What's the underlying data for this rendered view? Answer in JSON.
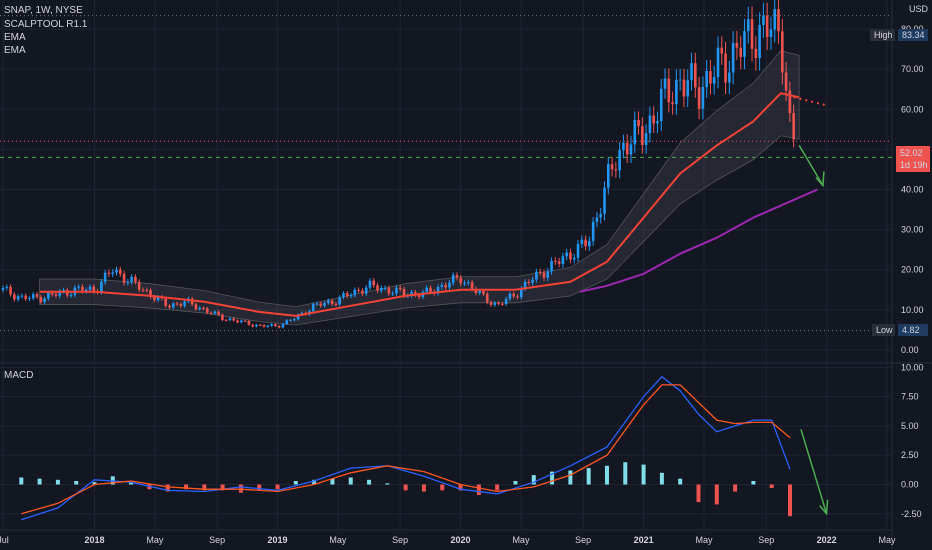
{
  "header": {
    "title": "SNAP, 1W, NYSE",
    "indicator1": "SCALPTOOL R1.1",
    "indicator2": "EMA",
    "indicator3": "EMA",
    "currency": "USD",
    "macd_label": "MACD"
  },
  "colors": {
    "background": "#131722",
    "grid": "#1f2433",
    "up": "#2196f3",
    "down": "#ef5350",
    "ema_fast": "#f44336",
    "ema_slow": "#9c27b0",
    "macd_line": "#2962ff",
    "signal_line": "#ff5722",
    "arrow": "#4caf50"
  },
  "price_labels": {
    "high_label": "High",
    "high_value": "83.34",
    "low_label": "Low",
    "low_value": "4.82",
    "last_value": "52.02",
    "countdown": "1d 19h"
  },
  "chart_data": [
    {
      "type": "candlestick",
      "title": "SNAP, 1W, NYSE",
      "ylim": [
        -3,
        86
      ],
      "y_ticks": [
        "0.00",
        "10.00",
        "20.00",
        "30.00",
        "40.00",
        "50.00",
        "60.00",
        "70.00",
        "80.00"
      ],
      "x_ticks": [
        "Jul",
        "2018",
        "May",
        "Sep",
        "2019",
        "May",
        "Sep",
        "2020",
        "May",
        "Sep",
        "2021",
        "May",
        "Sep",
        "2022",
        "May"
      ],
      "x_tick_dates": [
        2017.5,
        2018.0,
        2018.33,
        2018.67,
        2019.0,
        2019.33,
        2019.67,
        2020.0,
        2020.33,
        2020.67,
        2021.0,
        2021.33,
        2021.67,
        2022.0,
        2022.33
      ],
      "close": {
        "x": [
          2017.5,
          2017.6,
          2017.7,
          2017.8,
          2017.9,
          2018.0,
          2018.1,
          2018.2,
          2018.3,
          2018.4,
          2018.5,
          2018.6,
          2018.7,
          2018.8,
          2018.9,
          2019.0,
          2019.1,
          2019.2,
          2019.3,
          2019.4,
          2019.5,
          2019.6,
          2019.7,
          2019.8,
          2019.9,
          2020.0,
          2020.1,
          2020.2,
          2020.3,
          2020.4,
          2020.5,
          2020.6,
          2020.7,
          2020.8,
          2020.9,
          2021.0,
          2021.1,
          2021.2,
          2021.3,
          2021.4,
          2021.5,
          2021.6,
          2021.7,
          2021.75,
          2021.8,
          2021.82
        ],
        "y": [
          15,
          13,
          13,
          14,
          15,
          15,
          20,
          17,
          14,
          11,
          12,
          10,
          8,
          7,
          6,
          6,
          8,
          11,
          12,
          14,
          16,
          15,
          14,
          14,
          16,
          18,
          14,
          11,
          14,
          18,
          21,
          24,
          27,
          42,
          52,
          54,
          62,
          67,
          65,
          70,
          74,
          79,
          80,
          80,
          55,
          52.02
        ]
      },
      "ema_fast": {
        "x": [
          2017.7,
          2018.0,
          2018.3,
          2018.6,
          2018.9,
          2019.1,
          2019.4,
          2019.7,
          2020.0,
          2020.3,
          2020.6,
          2020.8,
          2021.0,
          2021.2,
          2021.4,
          2021.6,
          2021.75,
          2021.85
        ],
        "y": [
          14.5,
          14.5,
          13.5,
          12,
          9.5,
          8.5,
          11,
          13.5,
          15,
          15,
          17,
          22,
          33,
          44,
          51,
          57,
          64,
          63
        ]
      },
      "ema_slow": {
        "x": [
          2020.65,
          2020.8,
          2021.0,
          2021.2,
          2021.4,
          2021.6,
          2021.8,
          2021.95
        ],
        "y": [
          14.5,
          16,
          19,
          24,
          28,
          33,
          37,
          40
        ]
      },
      "annotations": [
        "High 83.34",
        "Low 4.82",
        "52.02",
        "1d 19h"
      ]
    },
    {
      "type": "bar",
      "title": "MACD",
      "ylim": [
        -3.2,
        10.2
      ],
      "y_ticks": [
        "-2.50",
        "0.00",
        "2.50",
        "5.00",
        "7.50",
        "10.00"
      ],
      "series": [
        {
          "x": [
            2017.6,
            2017.8,
            2018.0,
            2018.2,
            2018.4,
            2018.6,
            2018.8,
            2019.0,
            2019.2,
            2019.4,
            2019.6,
            2019.8,
            2020.0,
            2020.2,
            2020.4,
            2020.6,
            2020.8,
            2021.0,
            2021.1,
            2021.2,
            2021.3,
            2021.4,
            2021.5,
            2021.6,
            2021.7,
            2021.8
          ],
          "y": [
            -3,
            -2,
            0.4,
            0.2,
            -0.5,
            -0.6,
            -0.2,
            -0.5,
            0.3,
            1.4,
            1.6,
            0.7,
            -0.4,
            -0.8,
            0.2,
            1.6,
            3.2,
            7.5,
            9.2,
            8,
            6,
            4.5,
            5,
            5.5,
            5.5,
            1.3
          ]
        },
        {
          "x": [
            2017.6,
            2017.8,
            2018.0,
            2018.2,
            2018.4,
            2018.6,
            2018.8,
            2019.0,
            2019.2,
            2019.4,
            2019.6,
            2019.8,
            2020.0,
            2020.2,
            2020.4,
            2020.6,
            2020.8,
            2021.0,
            2021.1,
            2021.2,
            2021.3,
            2021.4,
            2021.5,
            2021.6,
            2021.7,
            2021.8
          ],
          "y": [
            -2.5,
            -1.6,
            0,
            0.3,
            -0.2,
            -0.4,
            -0.4,
            -0.6,
            0,
            1,
            1.6,
            1.1,
            0,
            -0.6,
            -0.2,
            0.8,
            2.5,
            6.8,
            8.5,
            8.5,
            7,
            5.5,
            5.2,
            5.3,
            5.3,
            4
          ]
        },
        {
          "x": [
            2017.6,
            2017.7,
            2017.8,
            2017.9,
            2018.0,
            2018.1,
            2018.2,
            2018.3,
            2018.4,
            2018.5,
            2018.6,
            2018.7,
            2018.8,
            2018.9,
            2019.0,
            2019.1,
            2019.2,
            2019.3,
            2019.4,
            2019.5,
            2019.6,
            2019.7,
            2019.8,
            2019.9,
            2020.0,
            2020.1,
            2020.2,
            2020.3,
            2020.4,
            2020.5,
            2020.6,
            2020.7,
            2020.8,
            2020.9,
            2021.0,
            2021.1,
            2021.2,
            2021.3,
            2021.4,
            2021.5,
            2021.6,
            2021.7,
            2021.8
          ],
          "y": [
            0.6,
            0.5,
            0.4,
            0.3,
            0.2,
            0.7,
            0.2,
            -0.4,
            -0.6,
            -0.4,
            -0.5,
            -0.5,
            -0.7,
            -0.5,
            -0.4,
            0.3,
            0.4,
            0.5,
            0.6,
            0.4,
            0.1,
            -0.5,
            -0.6,
            -0.5,
            -0.5,
            -0.9,
            -0.5,
            0.3,
            0.8,
            1.1,
            1.2,
            1.4,
            1.6,
            1.9,
            1.7,
            1.0,
            0.5,
            -1.5,
            -1.7,
            -0.6,
            0.3,
            -0.3,
            -2.7
          ]
        }
      ]
    }
  ]
}
